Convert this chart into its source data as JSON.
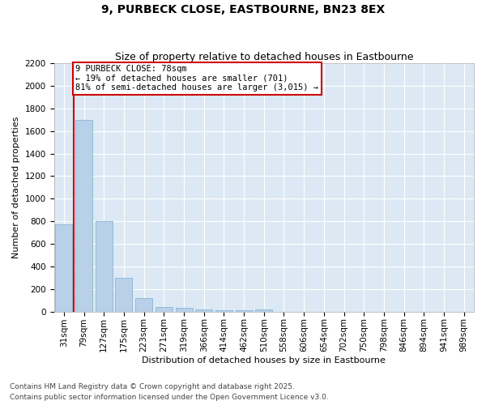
{
  "title_line1": "9, PURBECK CLOSE, EASTBOURNE, BN23 8EX",
  "title_line2": "Size of property relative to detached houses in Eastbourne",
  "xlabel": "Distribution of detached houses by size in Eastbourne",
  "ylabel": "Number of detached properties",
  "categories": [
    "31sqm",
    "79sqm",
    "127sqm",
    "175sqm",
    "223sqm",
    "271sqm",
    "319sqm",
    "366sqm",
    "414sqm",
    "462sqm",
    "510sqm",
    "558sqm",
    "606sqm",
    "654sqm",
    "702sqm",
    "750sqm",
    "798sqm",
    "846sqm",
    "894sqm",
    "941sqm",
    "989sqm"
  ],
  "values": [
    775,
    1700,
    800,
    300,
    120,
    40,
    35,
    20,
    15,
    15,
    20,
    0,
    0,
    0,
    0,
    0,
    0,
    0,
    0,
    0,
    0
  ],
  "bar_color": "#b8d0e8",
  "bar_edge_color": "#7aaed0",
  "vline_x": 0.5,
  "annotation_text": "9 PURBECK CLOSE: 78sqm\n← 19% of detached houses are smaller (701)\n81% of semi-detached houses are larger (3,015) →",
  "annotation_box_color": "#ffffff",
  "annotation_box_edge_color": "#cc0000",
  "vline_color": "#cc0000",
  "ylim": [
    0,
    2200
  ],
  "yticks": [
    0,
    200,
    400,
    600,
    800,
    1000,
    1200,
    1400,
    1600,
    1800,
    2000,
    2200
  ],
  "background_color": "#dce9f5",
  "grid_color": "#ffffff",
  "footer_line1": "Contains HM Land Registry data © Crown copyright and database right 2025.",
  "footer_line2": "Contains public sector information licensed under the Open Government Licence v3.0.",
  "title_fontsize": 10,
  "subtitle_fontsize": 9,
  "axis_label_fontsize": 8,
  "tick_fontsize": 7.5,
  "annotation_fontsize": 7.5,
  "footer_fontsize": 6.5
}
